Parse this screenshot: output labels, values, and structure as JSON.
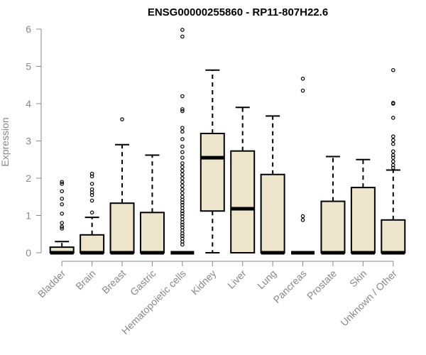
{
  "chart_data": {
    "type": "boxplot",
    "title": "ENSG00000255860 - RP11-807H22.6",
    "ylabel": "Expression",
    "xlabel": "",
    "ylim": [
      0,
      6
    ],
    "yticks": [
      "0",
      "1",
      "2",
      "3",
      "4",
      "5",
      "6"
    ],
    "colors": {
      "box_fill": "#ede6cc",
      "axis": "#888888",
      "line": "#000000"
    },
    "grid": false,
    "categories": [
      "Bladder",
      "Brain",
      "Breast",
      "Gastric",
      "Hematopoietic cells",
      "Kidney",
      "Liver",
      "Lung",
      "Pancreas",
      "Prostate",
      "Skin",
      "Unknown / Other"
    ],
    "boxes": [
      {
        "category": "Bladder",
        "q1": 0.0,
        "median": 0.0,
        "q3": 0.15,
        "whisker_low": 0.0,
        "whisker_high": 0.3,
        "outliers": [
          1.9,
          1.85,
          1.65,
          1.45,
          1.3,
          1.05,
          0.8,
          0.7,
          0.65
        ]
      },
      {
        "category": "Brain",
        "q1": 0.0,
        "median": 0.0,
        "q3": 0.48,
        "whisker_low": 0.0,
        "whisker_high": 0.95,
        "outliers": [
          2.12,
          2.05,
          1.85,
          1.7,
          1.62,
          1.55,
          1.4,
          1.08
        ]
      },
      {
        "category": "Breast",
        "q1": 0.0,
        "median": 0.0,
        "q3": 1.33,
        "whisker_low": 0.0,
        "whisker_high": 2.9,
        "outliers": [
          3.58
        ]
      },
      {
        "category": "Gastric",
        "q1": 0.0,
        "median": 0.0,
        "q3": 1.08,
        "whisker_low": 0.0,
        "whisker_high": 2.62,
        "outliers": []
      },
      {
        "category": "Hematopoietic cells",
        "q1": 0.0,
        "median": 0.0,
        "q3": 0.0,
        "whisker_low": 0.0,
        "whisker_high": 0.0,
        "outliers": [
          5.98,
          5.8,
          4.2,
          3.85,
          3.8,
          3.35,
          3.25,
          3.05,
          2.85,
          2.7,
          2.55,
          2.4,
          2.3,
          2.2,
          2.1,
          2.0,
          1.9,
          1.8,
          1.7,
          1.6,
          1.5,
          1.42,
          1.35,
          1.28,
          1.2,
          1.12,
          1.05,
          0.98,
          0.9,
          0.82,
          0.75,
          0.68,
          0.6,
          0.52,
          0.45,
          0.38,
          0.3,
          0.22
        ]
      },
      {
        "category": "Kidney",
        "q1": 1.12,
        "median": 2.55,
        "q3": 3.2,
        "whisker_low": 0.0,
        "whisker_high": 4.9,
        "outliers": []
      },
      {
        "category": "Liver",
        "q1": 0.0,
        "median": 1.18,
        "q3": 2.73,
        "whisker_low": 0.0,
        "whisker_high": 3.9,
        "outliers": []
      },
      {
        "category": "Lung",
        "q1": 0.0,
        "median": 0.0,
        "q3": 2.1,
        "whisker_low": 0.0,
        "whisker_high": 3.67,
        "outliers": []
      },
      {
        "category": "Pancreas",
        "q1": 0.0,
        "median": 0.0,
        "q3": 0.0,
        "whisker_low": 0.0,
        "whisker_high": 0.0,
        "outliers": [
          4.67,
          4.35,
          0.98,
          0.88
        ]
      },
      {
        "category": "Prostate",
        "q1": 0.0,
        "median": 0.0,
        "q3": 1.38,
        "whisker_low": 0.0,
        "whisker_high": 2.58,
        "outliers": []
      },
      {
        "category": "Skin",
        "q1": 0.0,
        "median": 0.0,
        "q3": 1.75,
        "whisker_low": 0.0,
        "whisker_high": 2.5,
        "outliers": []
      },
      {
        "category": "Unknown / Other",
        "q1": 0.0,
        "median": 0.0,
        "q3": 0.88,
        "whisker_low": 0.0,
        "whisker_high": 2.22,
        "outliers": [
          4.9,
          4.02,
          4.0,
          3.62,
          3.12,
          3.02,
          2.92,
          2.72,
          2.62,
          2.55,
          2.45,
          2.35,
          2.28
        ]
      }
    ]
  }
}
